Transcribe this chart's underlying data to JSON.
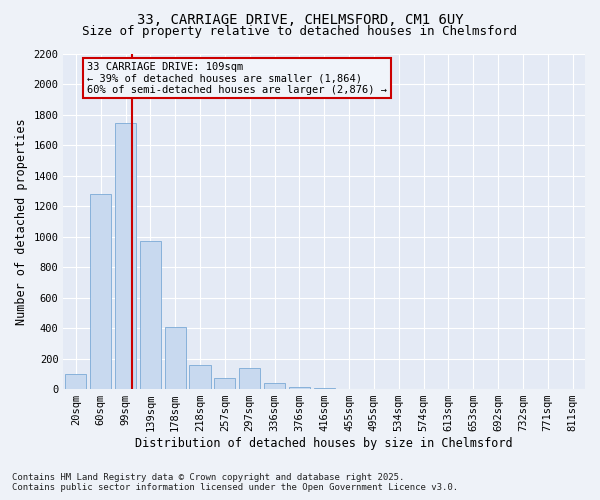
{
  "title_line1": "33, CARRIAGE DRIVE, CHELMSFORD, CM1 6UY",
  "title_line2": "Size of property relative to detached houses in Chelmsford",
  "xlabel": "Distribution of detached houses by size in Chelmsford",
  "ylabel": "Number of detached properties",
  "bin_labels": [
    "20sqm",
    "60sqm",
    "99sqm",
    "139sqm",
    "178sqm",
    "218sqm",
    "257sqm",
    "297sqm",
    "336sqm",
    "376sqm",
    "416sqm",
    "455sqm",
    "495sqm",
    "534sqm",
    "574sqm",
    "613sqm",
    "653sqm",
    "692sqm",
    "732sqm",
    "771sqm",
    "811sqm"
  ],
  "bar_values": [
    100,
    1280,
    1750,
    970,
    410,
    160,
    70,
    140,
    40,
    15,
    5,
    0,
    0,
    0,
    0,
    0,
    0,
    0,
    0,
    0,
    0
  ],
  "bar_color": "#c8d9ef",
  "bar_edgecolor": "#7baad6",
  "vline_x_index": 2.25,
  "vline_color": "#cc0000",
  "annotation_text": "33 CARRIAGE DRIVE: 109sqm\n← 39% of detached houses are smaller (1,864)\n60% of semi-detached houses are larger (2,876) →",
  "annotation_box_edgecolor": "#cc0000",
  "annotation_box_facecolor": "#f0f4fa",
  "ylim": [
    0,
    2200
  ],
  "yticks": [
    0,
    200,
    400,
    600,
    800,
    1000,
    1200,
    1400,
    1600,
    1800,
    2000,
    2200
  ],
  "footer_line1": "Contains HM Land Registry data © Crown copyright and database right 2025.",
  "footer_line2": "Contains public sector information licensed under the Open Government Licence v3.0.",
  "bg_color": "#eef2f8",
  "plot_bg_color": "#e4eaf5",
  "grid_color": "#ffffff",
  "title_fontsize": 10,
  "subtitle_fontsize": 9,
  "axis_label_fontsize": 8.5,
  "tick_fontsize": 7.5,
  "annotation_fontsize": 7.5,
  "footer_fontsize": 6.5
}
